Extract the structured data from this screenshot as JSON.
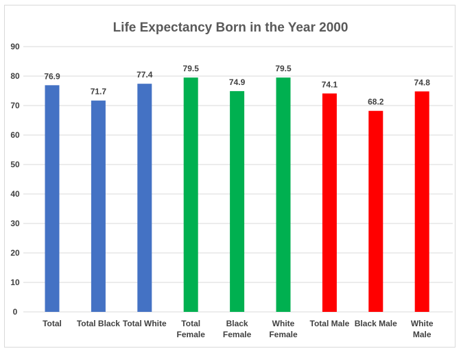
{
  "chart_data": {
    "type": "bar",
    "title": "Life Expectancy Born in the Year 2000",
    "xlabel": "",
    "ylabel": "",
    "ylim": [
      0,
      90
    ],
    "yticks": [
      0,
      10,
      20,
      30,
      40,
      50,
      60,
      70,
      80,
      90
    ],
    "grid": true,
    "legend": "none",
    "categories": [
      [
        "Total"
      ],
      [
        "Total Black"
      ],
      [
        "Total White"
      ],
      [
        "Total",
        "Female"
      ],
      [
        "Black",
        "Female"
      ],
      [
        "White",
        "Female"
      ],
      [
        "Total Male"
      ],
      [
        "Black Male"
      ],
      [
        "White",
        "Male"
      ]
    ],
    "values": [
      76.9,
      71.7,
      77.4,
      79.5,
      74.9,
      79.5,
      74.1,
      68.2,
      74.8
    ],
    "data_labels": [
      "76.9",
      "71.7",
      "77.4",
      "79.5",
      "74.9",
      "79.5",
      "74.1",
      "68.2",
      "74.8"
    ],
    "bar_colors": [
      "#4472c4",
      "#4472c4",
      "#4472c4",
      "#00b050",
      "#00b050",
      "#00b050",
      "#ff0000",
      "#ff0000",
      "#ff0000"
    ],
    "groups": [
      {
        "name": "Total",
        "color": "#4472c4"
      },
      {
        "name": "Female",
        "color": "#00b050"
      },
      {
        "name": "Male",
        "color": "#ff0000"
      }
    ]
  }
}
